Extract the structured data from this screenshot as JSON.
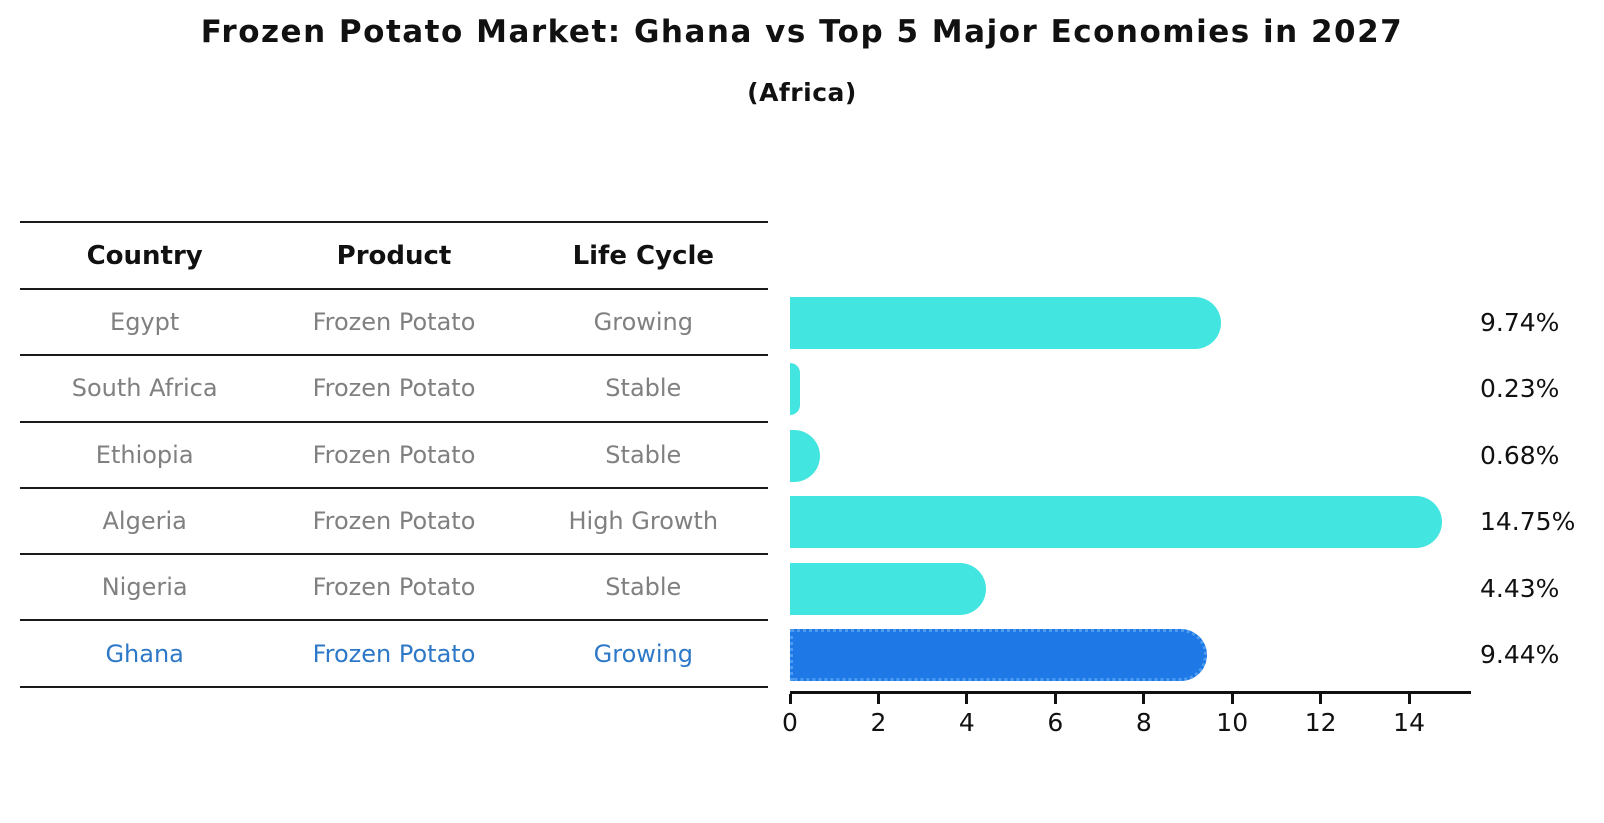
{
  "title": "Frozen Potato Market: Ghana vs Top 5 Major Economies in 2027",
  "subtitle": "(Africa)",
  "table": {
    "headers": [
      "Country",
      "Product",
      "Life Cycle"
    ],
    "rows": [
      {
        "country": "Egypt",
        "product": "Frozen Potato",
        "life_cycle": "Growing"
      },
      {
        "country": "South Africa",
        "product": "Frozen Potato",
        "life_cycle": "Stable"
      },
      {
        "country": "Ethiopia",
        "product": "Frozen Potato",
        "life_cycle": "Stable"
      },
      {
        "country": "Algeria",
        "product": "Frozen Potato",
        "life_cycle": "High Growth"
      },
      {
        "country": "Nigeria",
        "product": "Frozen Potato",
        "life_cycle": "Stable"
      },
      {
        "country": "Ghana",
        "product": "Frozen Potato",
        "life_cycle": "Growing"
      }
    ]
  },
  "chart_data": {
    "type": "bar",
    "orientation": "horizontal",
    "title": "Frozen Potato Market: Ghana vs Top 5 Major Economies in 2027",
    "subtitle": "(Africa)",
    "categories": [
      "Egypt",
      "South Africa",
      "Ethiopia",
      "Algeria",
      "Nigeria",
      "Ghana"
    ],
    "values": [
      9.74,
      0.23,
      0.68,
      14.75,
      4.43,
      9.44
    ],
    "value_labels": [
      "9.74%",
      "0.23%",
      "0.68%",
      "14.75%",
      "4.43%",
      "9.44%"
    ],
    "x_ticks": [
      0,
      2,
      4,
      6,
      8,
      10,
      12,
      14
    ],
    "xlim": [
      0,
      15.4
    ],
    "grid": false,
    "legend": false,
    "bar_color": "#42e5e0",
    "highlight_index": 5,
    "highlight_color": "#1e79e6",
    "highlight_border_color": "#4d9bf0",
    "text_color": "#111111",
    "row_text_color": "#808080",
    "highlight_text_color": "#2e79c7"
  }
}
